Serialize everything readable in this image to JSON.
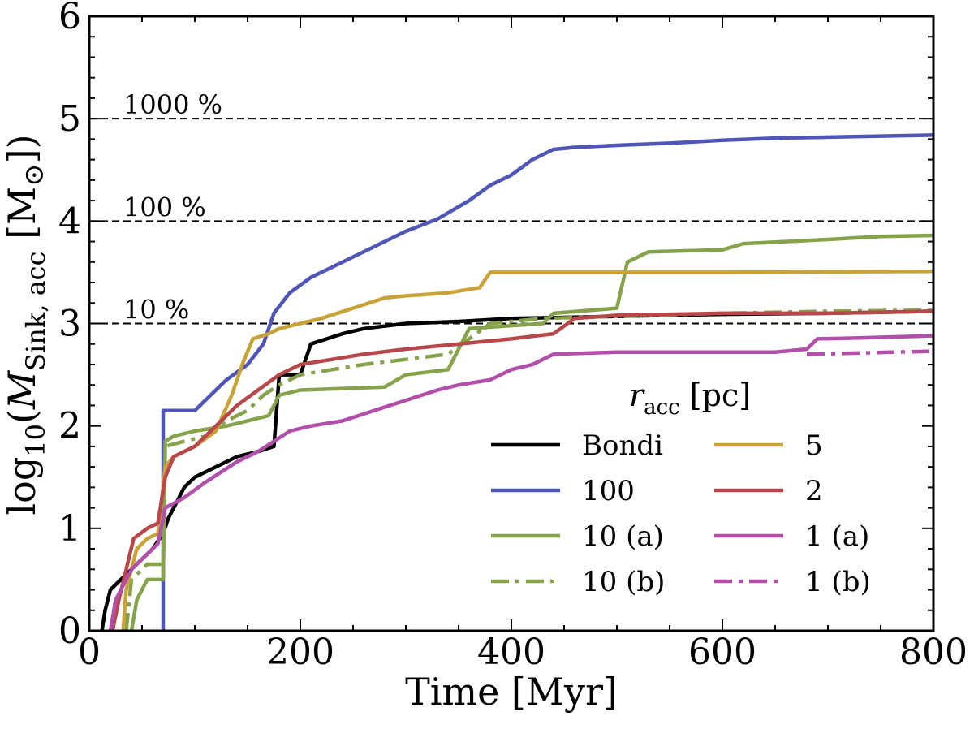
{
  "chart_data": {
    "type": "line",
    "xlabel": "Time [Myr]",
    "ylabel_parts": {
      "prefix": "log",
      "sub10": "10",
      "open": "(",
      "M": "M",
      "msub": "Sink, acc",
      "unit": " [M",
      "sun": "⊙",
      "close": "])"
    },
    "xlim": [
      0,
      800
    ],
    "ylim": [
      0,
      6
    ],
    "xticks": [
      0,
      200,
      400,
      600,
      800
    ],
    "yticks": [
      0,
      1,
      2,
      3,
      4,
      5,
      6
    ],
    "xtick_labels": [
      "0",
      "200",
      "400",
      "600",
      "800"
    ],
    "ytick_labels": [
      "0",
      "1",
      "2",
      "3",
      "4",
      "5",
      "6"
    ],
    "reference_lines": [
      {
        "y": 3,
        "label": "10 %"
      },
      {
        "y": 4,
        "label": "100 %"
      },
      {
        "y": 5,
        "label": "1000 %"
      }
    ],
    "legend": {
      "title_r": "r",
      "title_sub": "acc",
      "title_unit": " [pc]",
      "placement": "lower-right"
    },
    "series": [
      {
        "name": "Bondi",
        "color": "#000000",
        "dash": "solid",
        "points": [
          [
            12,
            0
          ],
          [
            15,
            0.2
          ],
          [
            20,
            0.4
          ],
          [
            30,
            0.5
          ],
          [
            40,
            0.6
          ],
          [
            50,
            0.7
          ],
          [
            60,
            0.8
          ],
          [
            70,
            0.95
          ],
          [
            75,
            1.1
          ],
          [
            80,
            1.2
          ],
          [
            90,
            1.4
          ],
          [
            100,
            1.5
          ],
          [
            120,
            1.6
          ],
          [
            140,
            1.7
          ],
          [
            160,
            1.75
          ],
          [
            175,
            1.8
          ],
          [
            180,
            2.5
          ],
          [
            200,
            2.5
          ],
          [
            210,
            2.8
          ],
          [
            240,
            2.9
          ],
          [
            260,
            2.95
          ],
          [
            300,
            3.0
          ],
          [
            350,
            3.02
          ],
          [
            400,
            3.05
          ],
          [
            500,
            3.07
          ],
          [
            600,
            3.09
          ],
          [
            700,
            3.1
          ],
          [
            800,
            3.12
          ]
        ]
      },
      {
        "name": "100",
        "color": "#4f56b7",
        "dash": "solid",
        "points": [
          [
            70,
            0
          ],
          [
            70,
            2.15
          ],
          [
            100,
            2.15
          ],
          [
            115,
            2.3
          ],
          [
            130,
            2.45
          ],
          [
            150,
            2.6
          ],
          [
            165,
            2.8
          ],
          [
            175,
            3.1
          ],
          [
            190,
            3.3
          ],
          [
            210,
            3.45
          ],
          [
            230,
            3.55
          ],
          [
            250,
            3.65
          ],
          [
            270,
            3.75
          ],
          [
            300,
            3.9
          ],
          [
            330,
            4.02
          ],
          [
            360,
            4.2
          ],
          [
            380,
            4.35
          ],
          [
            400,
            4.45
          ],
          [
            420,
            4.6
          ],
          [
            440,
            4.7
          ],
          [
            460,
            4.72
          ],
          [
            500,
            4.74
          ],
          [
            550,
            4.76
          ],
          [
            600,
            4.79
          ],
          [
            650,
            4.81
          ],
          [
            700,
            4.82
          ],
          [
            750,
            4.83
          ],
          [
            800,
            4.84
          ]
        ]
      },
      {
        "name": "10 (a)",
        "color": "#86a34c",
        "dash": "solid",
        "points": [
          [
            40,
            0
          ],
          [
            45,
            0.3
          ],
          [
            55,
            0.5
          ],
          [
            70,
            0.5
          ],
          [
            72,
            1.85
          ],
          [
            80,
            1.9
          ],
          [
            100,
            1.95
          ],
          [
            130,
            2.0
          ],
          [
            150,
            2.05
          ],
          [
            170,
            2.1
          ],
          [
            180,
            2.3
          ],
          [
            200,
            2.35
          ],
          [
            280,
            2.38
          ],
          [
            300,
            2.5
          ],
          [
            340,
            2.55
          ],
          [
            360,
            2.95
          ],
          [
            430,
            3.0
          ],
          [
            440,
            3.1
          ],
          [
            500,
            3.15
          ],
          [
            510,
            3.6
          ],
          [
            530,
            3.7
          ],
          [
            600,
            3.72
          ],
          [
            620,
            3.78
          ],
          [
            660,
            3.8
          ],
          [
            700,
            3.82
          ],
          [
            750,
            3.85
          ],
          [
            800,
            3.86
          ]
        ]
      },
      {
        "name": "10 (b)",
        "color": "#86a34c",
        "dash": "dashdot",
        "points": [
          [
            35,
            0
          ],
          [
            40,
            0.5
          ],
          [
            55,
            0.65
          ],
          [
            70,
            0.65
          ],
          [
            72,
            1.8
          ],
          [
            90,
            1.85
          ],
          [
            110,
            1.9
          ],
          [
            130,
            2.05
          ],
          [
            150,
            2.15
          ],
          [
            165,
            2.3
          ],
          [
            180,
            2.4
          ],
          [
            200,
            2.5
          ],
          [
            230,
            2.55
          ],
          [
            260,
            2.6
          ],
          [
            300,
            2.65
          ],
          [
            340,
            2.7
          ],
          [
            360,
            2.85
          ],
          [
            380,
            3.0
          ],
          [
            430,
            3.05
          ],
          [
            500,
            3.07
          ],
          [
            600,
            3.1
          ],
          [
            700,
            3.12
          ],
          [
            800,
            3.13
          ]
        ]
      },
      {
        "name": "5",
        "color": "#c9a338",
        "dash": "solid",
        "points": [
          [
            32,
            0
          ],
          [
            35,
            0.4
          ],
          [
            45,
            0.8
          ],
          [
            55,
            0.9
          ],
          [
            65,
            0.95
          ],
          [
            72,
            1.6
          ],
          [
            80,
            1.7
          ],
          [
            100,
            1.8
          ],
          [
            120,
            1.95
          ],
          [
            135,
            2.3
          ],
          [
            145,
            2.6
          ],
          [
            155,
            2.85
          ],
          [
            170,
            2.9
          ],
          [
            180,
            2.95
          ],
          [
            200,
            3.0
          ],
          [
            220,
            3.05
          ],
          [
            250,
            3.15
          ],
          [
            280,
            3.25
          ],
          [
            300,
            3.27
          ],
          [
            340,
            3.3
          ],
          [
            370,
            3.35
          ],
          [
            380,
            3.5
          ],
          [
            450,
            3.5
          ],
          [
            600,
            3.5
          ],
          [
            800,
            3.51
          ]
        ]
      },
      {
        "name": "2",
        "color": "#b8474a",
        "dash": "solid",
        "points": [
          [
            22,
            0
          ],
          [
            28,
            0.3
          ],
          [
            35,
            0.6
          ],
          [
            42,
            0.9
          ],
          [
            55,
            1.0
          ],
          [
            65,
            1.05
          ],
          [
            72,
            1.5
          ],
          [
            80,
            1.7
          ],
          [
            100,
            1.8
          ],
          [
            120,
            2.0
          ],
          [
            140,
            2.2
          ],
          [
            160,
            2.35
          ],
          [
            180,
            2.5
          ],
          [
            200,
            2.6
          ],
          [
            230,
            2.65
          ],
          [
            260,
            2.7
          ],
          [
            300,
            2.75
          ],
          [
            350,
            2.8
          ],
          [
            400,
            2.85
          ],
          [
            440,
            2.9
          ],
          [
            460,
            3.05
          ],
          [
            500,
            3.08
          ],
          [
            600,
            3.1
          ],
          [
            700,
            3.1
          ],
          [
            800,
            3.12
          ]
        ]
      },
      {
        "name": "1 (a)",
        "color": "#b14fab",
        "dash": "solid",
        "points": [
          [
            20,
            0
          ],
          [
            25,
            0.3
          ],
          [
            40,
            0.6
          ],
          [
            55,
            0.75
          ],
          [
            65,
            0.85
          ],
          [
            72,
            1.2
          ],
          [
            90,
            1.3
          ],
          [
            110,
            1.45
          ],
          [
            140,
            1.65
          ],
          [
            160,
            1.75
          ],
          [
            190,
            1.95
          ],
          [
            210,
            2.0
          ],
          [
            240,
            2.05
          ],
          [
            270,
            2.15
          ],
          [
            300,
            2.25
          ],
          [
            330,
            2.35
          ],
          [
            350,
            2.4
          ],
          [
            380,
            2.45
          ],
          [
            400,
            2.55
          ],
          [
            420,
            2.6
          ],
          [
            440,
            2.7
          ],
          [
            500,
            2.72
          ],
          [
            600,
            2.72
          ],
          [
            650,
            2.72
          ],
          [
            680,
            2.75
          ],
          [
            690,
            2.85
          ],
          [
            730,
            2.86
          ],
          [
            800,
            2.88
          ]
        ]
      },
      {
        "name": "1 (b)",
        "color": "#b14fab",
        "dash": "dashdot",
        "points": [
          [
            680,
            2.7
          ],
          [
            720,
            2.71
          ],
          [
            760,
            2.72
          ],
          [
            800,
            2.73
          ]
        ]
      }
    ]
  }
}
